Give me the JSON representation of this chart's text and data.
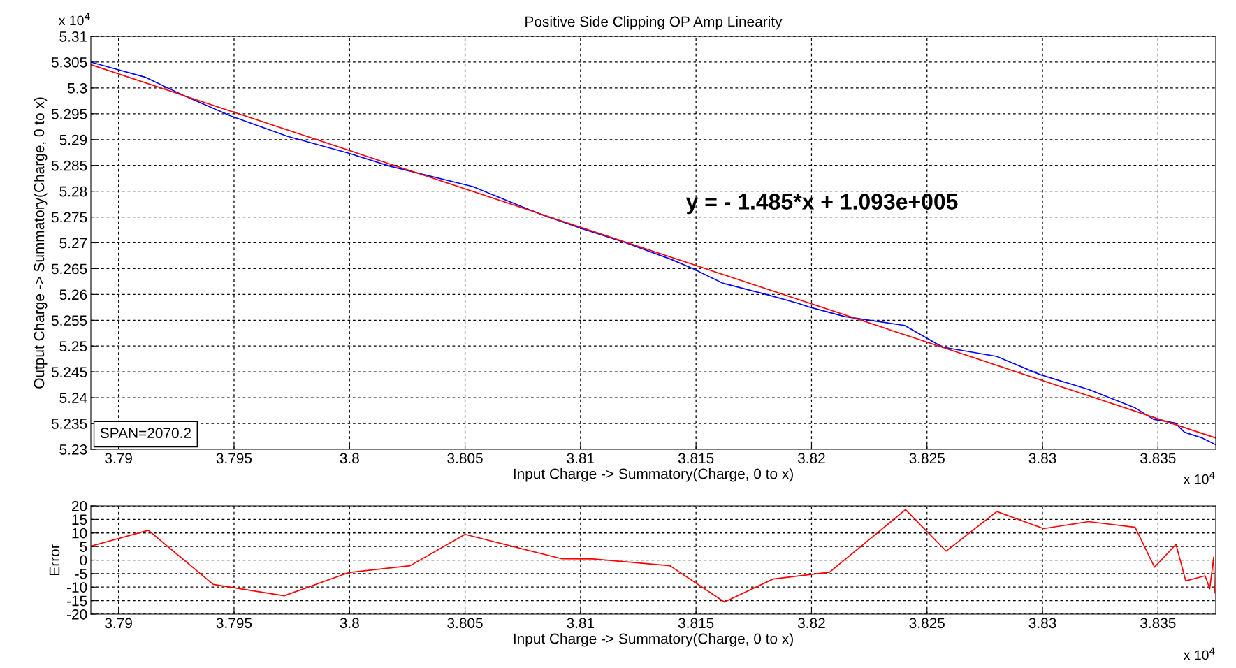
{
  "chart_data": [
    {
      "type": "line",
      "title": "Positive Side Clipping OP Amp Linearity",
      "xlabel": "Input Charge -> Summatory(Charge, 0 to x)",
      "ylabel": "Output Charge -> Summatory(Charge, 0 to x)",
      "series": [
        {
          "color": "#0000ff",
          "x": [
            3.7888,
            3.79114,
            3.79279,
            3.7949,
            3.79733,
            3.79994,
            3.80178,
            3.80533,
            3.8083,
            3.80989,
            3.8119,
            3.81392,
            3.81487,
            3.81614,
            3.81804,
            3.81941,
            3.81987,
            3.82145,
            3.82403,
            3.82567,
            3.82801,
            3.82988,
            3.83199,
            3.83398,
            3.83481,
            3.83574,
            3.83615,
            3.83691,
            3.8375
          ],
          "values": [
            5.305,
            5.3021,
            5.2986,
            5.2945,
            5.2906,
            5.2874,
            5.2848,
            5.2809,
            5.2755,
            5.273,
            5.2701,
            5.2668,
            5.265,
            5.2622,
            5.26,
            5.2583,
            5.2576,
            5.2557,
            5.254,
            5.2498,
            5.248,
            5.2445,
            5.2416,
            5.2381,
            5.2358,
            5.2351,
            5.2333,
            5.2322,
            5.2309
          ]
        },
        {
          "color": "#ff0000",
          "x": [
            3.7888,
            3.8375
          ],
          "values": [
            5.3045,
            5.2322
          ]
        }
      ],
      "xlim": [
        3.7888,
        3.8375
      ],
      "xticks": [
        3.79,
        3.795,
        3.8,
        3.805,
        3.81,
        3.815,
        3.82,
        3.825,
        3.83,
        3.835
      ],
      "ylim": [
        5.23,
        5.31
      ],
      "yticks": [
        5.23,
        5.235,
        5.24,
        5.245,
        5.25,
        5.255,
        5.26,
        5.265,
        5.27,
        5.275,
        5.28,
        5.285,
        5.29,
        5.295,
        5.3,
        5.305,
        5.31
      ],
      "grid": true,
      "annotations": [
        "x 10$^{4}$",
        "x 10$^{4}$",
        "y = - 1.485*x + 1.093e+005",
        "SPAN=2070.2"
      ]
    },
    {
      "type": "line",
      "xlabel": "Input Charge -> Summatory(Charge, 0 to x)",
      "ylabel": "Error",
      "series": [
        {
          "color": "#ff0000",
          "x": [
            3.7888,
            3.79129,
            3.7941,
            3.79717,
            3.79998,
            3.80262,
            3.805,
            3.80918,
            3.81054,
            3.81387,
            3.81623,
            3.81834,
            3.82078,
            3.82407,
            3.82583,
            3.82802,
            3.83005,
            3.83199,
            3.83401,
            3.83485,
            3.83578,
            3.8362,
            3.83704,
            3.83724,
            3.83741,
            3.83745
          ],
          "values": [
            5.1,
            11.0,
            -9.0,
            -13.2,
            -4.6,
            -2.1,
            9.5,
            0.5,
            0.4,
            -2.1,
            -15.5,
            -7.0,
            -4.5,
            18.6,
            3.3,
            17.9,
            11.6,
            14.2,
            12.1,
            -2.6,
            5.8,
            -7.7,
            -5.8,
            -10.6,
            1.1,
            -12.1
          ]
        }
      ],
      "xlim": [
        3.7888,
        3.8375
      ],
      "xticks": [
        3.79,
        3.795,
        3.8,
        3.805,
        3.81,
        3.815,
        3.82,
        3.825,
        3.83,
        3.835
      ],
      "ylim": [
        -20,
        20
      ],
      "yticks": [
        -20,
        -15,
        -10,
        -5,
        0,
        5,
        10,
        15,
        20
      ],
      "grid": true,
      "annotations": [
        "x 10$^{4}$"
      ]
    }
  ]
}
